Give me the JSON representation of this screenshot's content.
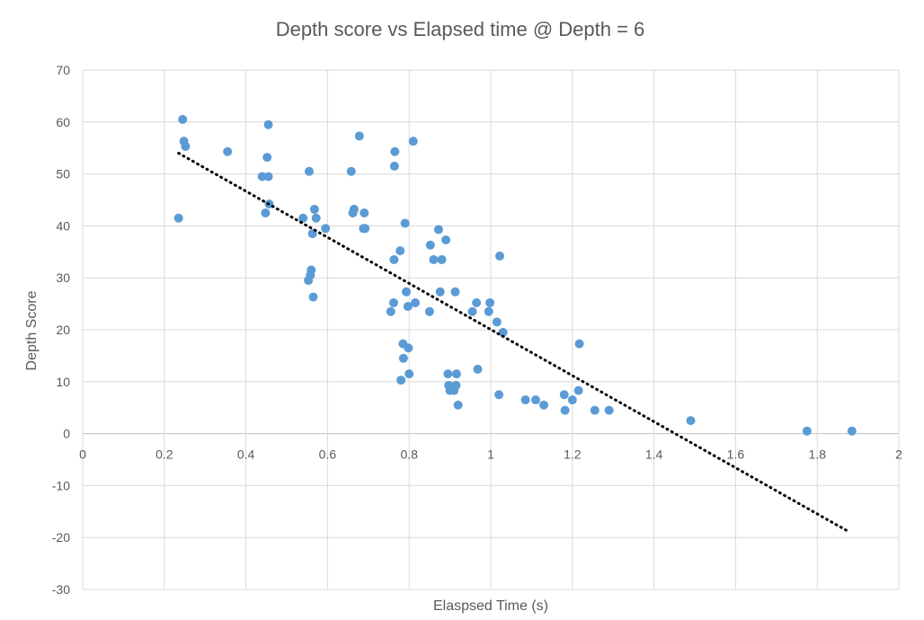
{
  "chart_data": {
    "type": "scatter",
    "title": "Depth score vs Elapsed time @ Depth = 6",
    "xlabel": "Elaspsed Time (s)",
    "ylabel": "Depth Score",
    "xlim": [
      0,
      2
    ],
    "ylim": [
      -30,
      70
    ],
    "xticks": [
      0,
      0.2,
      0.4,
      0.6,
      0.8,
      1,
      1.2,
      1.4,
      1.6,
      1.8,
      2
    ],
    "yticks": [
      -30,
      -20,
      -10,
      0,
      10,
      20,
      30,
      40,
      50,
      60,
      70
    ],
    "grid": true,
    "legend": "none",
    "point_color": "#5B9BD5",
    "trendline": {
      "type": "linear",
      "style": "dotted",
      "color": "#000000",
      "x": [
        0.235,
        1.88
      ],
      "y": [
        54,
        -19
      ]
    },
    "points": [
      [
        0.235,
        41.5
      ],
      [
        0.245,
        60.5
      ],
      [
        0.248,
        56.3
      ],
      [
        0.252,
        55.3
      ],
      [
        0.355,
        54.3
      ],
      [
        0.44,
        49.5
      ],
      [
        0.448,
        42.5
      ],
      [
        0.452,
        53.2
      ],
      [
        0.455,
        59.5
      ],
      [
        0.455,
        49.5
      ],
      [
        0.457,
        44.2
      ],
      [
        0.54,
        41.5
      ],
      [
        0.553,
        29.5
      ],
      [
        0.555,
        50.5
      ],
      [
        0.558,
        30.5
      ],
      [
        0.56,
        31.5
      ],
      [
        0.563,
        38.5
      ],
      [
        0.565,
        26.3
      ],
      [
        0.568,
        43.2
      ],
      [
        0.572,
        41.5
      ],
      [
        0.595,
        39.5
      ],
      [
        0.658,
        50.5
      ],
      [
        0.662,
        42.5
      ],
      [
        0.665,
        43.2
      ],
      [
        0.678,
        57.3
      ],
      [
        0.688,
        39.5
      ],
      [
        0.69,
        42.5
      ],
      [
        0.692,
        39.5
      ],
      [
        0.755,
        23.5
      ],
      [
        0.762,
        25.2
      ],
      [
        0.763,
        33.5
      ],
      [
        0.764,
        51.5
      ],
      [
        0.765,
        54.3
      ],
      [
        0.778,
        35.2
      ],
      [
        0.78,
        10.3
      ],
      [
        0.785,
        17.3
      ],
      [
        0.786,
        14.5
      ],
      [
        0.79,
        40.5
      ],
      [
        0.793,
        27.3
      ],
      [
        0.797,
        24.5
      ],
      [
        0.798,
        16.5
      ],
      [
        0.8,
        11.5
      ],
      [
        0.81,
        56.3
      ],
      [
        0.815,
        25.2
      ],
      [
        0.85,
        23.5
      ],
      [
        0.852,
        36.3
      ],
      [
        0.86,
        33.5
      ],
      [
        0.872,
        39.3
      ],
      [
        0.876,
        27.3
      ],
      [
        0.88,
        33.5
      ],
      [
        0.89,
        37.3
      ],
      [
        0.895,
        11.5
      ],
      [
        0.897,
        9.3
      ],
      [
        0.9,
        8.3
      ],
      [
        0.91,
        8.3
      ],
      [
        0.913,
        27.3
      ],
      [
        0.915,
        9.3
      ],
      [
        0.916,
        11.5
      ],
      [
        0.92,
        5.5
      ],
      [
        0.955,
        23.5
      ],
      [
        0.965,
        25.2
      ],
      [
        0.968,
        12.4
      ],
      [
        0.995,
        23.5
      ],
      [
        0.998,
        25.2
      ],
      [
        1.015,
        21.5
      ],
      [
        1.02,
        7.5
      ],
      [
        1.022,
        34.2
      ],
      [
        1.03,
        19.5
      ],
      [
        1.085,
        6.5
      ],
      [
        1.11,
        6.5
      ],
      [
        1.13,
        5.5
      ],
      [
        1.18,
        7.5
      ],
      [
        1.182,
        4.5
      ],
      [
        1.2,
        6.5
      ],
      [
        1.215,
        8.3
      ],
      [
        1.217,
        17.3
      ],
      [
        1.255,
        4.5
      ],
      [
        1.29,
        4.5
      ],
      [
        1.49,
        2.5
      ],
      [
        1.775,
        0.5
      ],
      [
        1.885,
        0.5
      ]
    ]
  }
}
